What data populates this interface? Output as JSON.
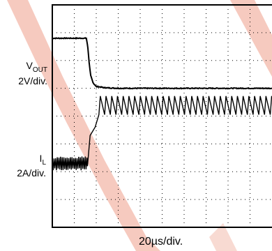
{
  "chart_data": {
    "type": "line",
    "title": "",
    "grid": true,
    "divisions": {
      "x": 10,
      "y": 8
    },
    "x_scale": {
      "value": "20µs/div"
    },
    "series": [
      {
        "name": "V",
        "name_subscript": "OUT",
        "scale": "2V/div.",
        "color": "#000000",
        "x_div": [
          0,
          1.55,
          1.62,
          1.68,
          1.75,
          1.85,
          2.0,
          2.4,
          3.0,
          10
        ],
        "y_div": [
          6.8,
          6.8,
          6.45,
          5.9,
          5.45,
          5.2,
          5.07,
          5.02,
          5.0,
          5.0
        ]
      },
      {
        "name": "I",
        "name_subscript": "L",
        "scale": "2A/div.",
        "color": "#000000",
        "ripple_before_div": {
          "level": 2.3,
          "amplitude": 0.25,
          "period": 0.075
        },
        "step_x_div": [
          1.6,
          1.72,
          1.95,
          2.12
        ],
        "step_y_div": [
          2.3,
          3.2,
          3.7,
          3.95
        ],
        "sawtooth_after_div": {
          "start_x": 2.12,
          "top": 4.72,
          "bottom": 4.05,
          "period": 0.26,
          "rise_fraction": 0.25
        }
      }
    ]
  },
  "labels": {
    "vout_name": "V",
    "vout_sub": "OUT",
    "vout_scale": "2V/div.",
    "il_name": "I",
    "il_sub": "L",
    "il_scale": "2A/div.",
    "time_scale": "20µs/div."
  }
}
